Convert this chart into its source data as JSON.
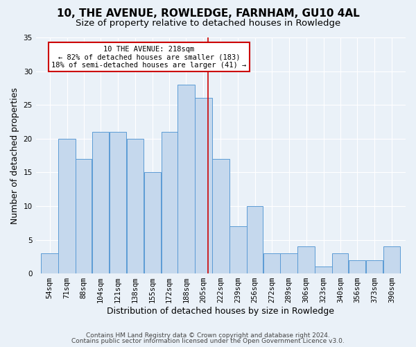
{
  "title": "10, THE AVENUE, ROWLEDGE, FARNHAM, GU10 4AL",
  "subtitle": "Size of property relative to detached houses in Rowledge",
  "xlabel": "Distribution of detached houses by size in Rowledge",
  "ylabel": "Number of detached properties",
  "categories": [
    "54sqm",
    "71sqm",
    "88sqm",
    "104sqm",
    "121sqm",
    "138sqm",
    "155sqm",
    "172sqm",
    "188sqm",
    "205sqm",
    "222sqm",
    "239sqm",
    "256sqm",
    "272sqm",
    "289sqm",
    "306sqm",
    "323sqm",
    "340sqm",
    "356sqm",
    "373sqm",
    "390sqm"
  ],
  "values": [
    3,
    20,
    17,
    21,
    21,
    20,
    15,
    21,
    28,
    26,
    17,
    7,
    10,
    3,
    3,
    4,
    1,
    3,
    2,
    2,
    4
  ],
  "bar_color": "#c5d8ed",
  "bar_edge_color": "#5b9bd5",
  "property_line_x": 218,
  "bin_edges": [
    54,
    71,
    88,
    104,
    121,
    138,
    155,
    172,
    188,
    205,
    222,
    239,
    256,
    272,
    289,
    306,
    323,
    340,
    356,
    373,
    390,
    407
  ],
  "annotation_title": "10 THE AVENUE: 218sqm",
  "annotation_line1": "← 82% of detached houses are smaller (183)",
  "annotation_line2": "18% of semi-detached houses are larger (41) →",
  "annotation_box_color": "#ffffff",
  "annotation_box_edge": "#cc0000",
  "vline_color": "#cc0000",
  "ylim": [
    0,
    35
  ],
  "yticks": [
    0,
    5,
    10,
    15,
    20,
    25,
    30,
    35
  ],
  "footer1": "Contains HM Land Registry data © Crown copyright and database right 2024.",
  "footer2": "Contains public sector information licensed under the Open Government Licence v3.0.",
  "bg_color": "#eaf1f8",
  "grid_color": "#ffffff",
  "title_fontsize": 11,
  "subtitle_fontsize": 9.5,
  "axis_label_fontsize": 9,
  "tick_fontsize": 7.5,
  "footer_fontsize": 6.5
}
